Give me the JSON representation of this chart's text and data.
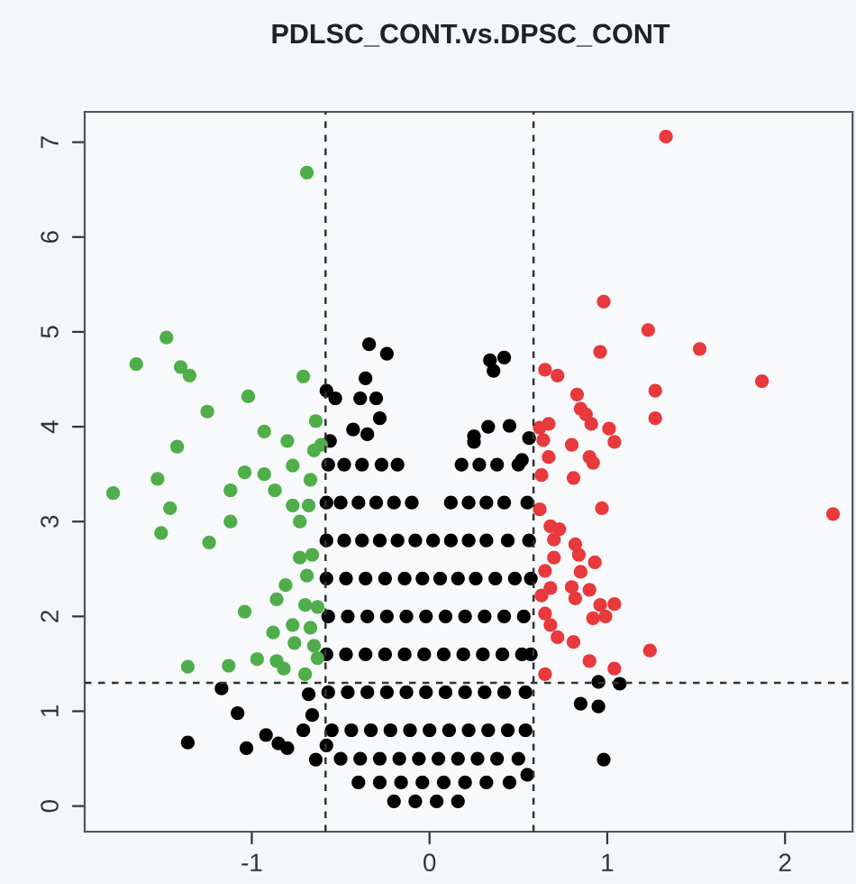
{
  "chart_data": {
    "type": "scatter",
    "title": "PDLSC_CONT.vs.DPSC_CONT",
    "xlim": [
      -1.94,
      2.38
    ],
    "ylim": [
      -0.27,
      7.32
    ],
    "xticks": [
      -1,
      0,
      1,
      2
    ],
    "yticks": [
      0,
      1,
      2,
      3,
      4,
      5,
      6,
      7
    ],
    "grid": false,
    "legend": false,
    "marker": "circle",
    "ref_lines": [
      {
        "axis": "x",
        "value": -0.585,
        "line_style": "dashed",
        "color": "#333333"
      },
      {
        "axis": "x",
        "value": 0.585,
        "line_style": "dashed",
        "color": "#333333"
      },
      {
        "axis": "y",
        "value": 1.3,
        "line_style": "dashed",
        "color": "#333333"
      }
    ],
    "series": [
      {
        "color": "#000000",
        "x": [
          -0.34,
          -0.24,
          0.34,
          0.42,
          -0.36,
          0.36,
          -0.58,
          -0.53,
          -0.39,
          -0.3,
          -0.56,
          -0.43,
          -0.35,
          -0.28,
          0.25,
          0.33,
          0.45,
          0.56,
          -0.57,
          -0.48,
          -0.38,
          -0.27,
          -0.18,
          0.18,
          0.28,
          0.38,
          0.5,
          0.25,
          0.52,
          -0.58,
          -0.5,
          -0.4,
          -0.3,
          -0.2,
          -0.1,
          0.12,
          0.22,
          0.32,
          0.42,
          0.55,
          -0.58,
          -0.48,
          -0.38,
          -0.28,
          -0.18,
          -0.08,
          0.02,
          0.12,
          0.22,
          0.32,
          0.44,
          0.56,
          -0.58,
          -0.47,
          -0.36,
          -0.25,
          -0.14,
          -0.04,
          0.06,
          0.16,
          0.26,
          0.37,
          0.48,
          0.57,
          -0.57,
          -0.46,
          -0.35,
          -0.24,
          -0.13,
          -0.02,
          0.09,
          0.2,
          0.31,
          0.42,
          0.53,
          -0.58,
          -0.47,
          -0.36,
          -0.25,
          -0.14,
          -0.03,
          0.08,
          0.19,
          0.3,
          0.41,
          0.52,
          0.57,
          -0.57,
          -0.46,
          -0.35,
          -0.24,
          -0.13,
          -0.02,
          0.09,
          0.2,
          0.31,
          0.42,
          0.54,
          -0.55,
          -0.44,
          -0.33,
          -0.22,
          -0.11,
          0.0,
          0.11,
          0.22,
          0.33,
          0.44,
          0.54,
          -0.5,
          -0.39,
          -0.28,
          -0.17,
          -0.06,
          0.05,
          0.16,
          0.27,
          0.38,
          0.5,
          -0.4,
          -0.28,
          -0.16,
          -0.04,
          0.08,
          0.2,
          0.32,
          0.45,
          0.55,
          -0.2,
          -0.08,
          0.04,
          0.16,
          -1.17,
          -1.08,
          -1.36,
          -1.03,
          -0.92,
          -0.85,
          -0.8,
          -0.71,
          -0.66,
          -0.68,
          -0.64,
          -0.58,
          0.95,
          1.07,
          0.85,
          0.95,
          0.98
        ],
        "values": [
          4.87,
          4.77,
          4.7,
          4.73,
          4.51,
          4.59,
          4.38,
          4.3,
          4.3,
          4.3,
          3.85,
          3.97,
          3.92,
          4.09,
          3.9,
          4.0,
          4.01,
          3.88,
          3.6,
          3.6,
          3.6,
          3.6,
          3.6,
          3.6,
          3.6,
          3.6,
          3.6,
          3.84,
          3.65,
          3.2,
          3.2,
          3.2,
          3.2,
          3.2,
          3.2,
          3.2,
          3.2,
          3.2,
          3.2,
          3.2,
          2.8,
          2.8,
          2.8,
          2.8,
          2.8,
          2.8,
          2.8,
          2.8,
          2.8,
          2.8,
          2.8,
          2.8,
          2.4,
          2.4,
          2.4,
          2.4,
          2.4,
          2.4,
          2.4,
          2.4,
          2.4,
          2.4,
          2.4,
          2.4,
          2.0,
          2.0,
          2.0,
          2.0,
          2.0,
          2.0,
          2.0,
          2.0,
          2.0,
          2.0,
          2.0,
          1.6,
          1.6,
          1.6,
          1.6,
          1.6,
          1.6,
          1.6,
          1.6,
          1.6,
          1.6,
          1.6,
          1.6,
          1.2,
          1.2,
          1.2,
          1.2,
          1.2,
          1.2,
          1.2,
          1.2,
          1.2,
          1.2,
          1.2,
          0.8,
          0.8,
          0.8,
          0.8,
          0.8,
          0.8,
          0.8,
          0.8,
          0.8,
          0.8,
          0.8,
          0.5,
          0.5,
          0.5,
          0.5,
          0.5,
          0.5,
          0.5,
          0.5,
          0.5,
          0.5,
          0.25,
          0.25,
          0.25,
          0.25,
          0.25,
          0.25,
          0.25,
          0.25,
          0.33,
          0.05,
          0.05,
          0.05,
          0.05,
          1.24,
          0.98,
          0.67,
          0.61,
          0.75,
          0.66,
          0.61,
          0.8,
          0.96,
          1.18,
          0.49,
          0.64,
          1.31,
          1.29,
          1.08,
          1.05,
          0.49
        ]
      },
      {
        "color": "#4fae4a",
        "x": [
          -0.69,
          -1.48,
          -1.65,
          -1.4,
          -1.35,
          -0.71,
          -1.02,
          -1.25,
          -0.64,
          -0.93,
          -0.8,
          -1.42,
          -1.78,
          -1.53,
          -1.46,
          -1.51,
          -1.12,
          -1.12,
          -1.24,
          -1.04,
          -0.93,
          -0.87,
          -0.77,
          -0.77,
          -0.68,
          -0.73,
          -0.67,
          -0.65,
          -0.73,
          -0.66,
          -0.81,
          -0.69,
          -0.86,
          -1.04,
          -0.7,
          -0.63,
          -0.77,
          -0.88,
          -0.67,
          -0.76,
          -0.65,
          -1.36,
          -1.13,
          -0.97,
          -0.86,
          -0.82,
          -0.7,
          -0.63,
          -0.61
        ],
        "values": [
          6.68,
          4.94,
          4.66,
          4.63,
          4.54,
          4.53,
          4.32,
          4.16,
          4.06,
          3.95,
          3.85,
          3.79,
          3.3,
          3.45,
          3.14,
          2.88,
          3.33,
          3.0,
          2.78,
          3.52,
          3.5,
          3.33,
          3.59,
          3.17,
          3.17,
          3.0,
          3.44,
          3.75,
          2.62,
          2.65,
          2.33,
          2.43,
          2.18,
          2.05,
          2.12,
          2.1,
          1.91,
          1.83,
          1.88,
          1.72,
          1.69,
          1.47,
          1.48,
          1.55,
          1.53,
          1.45,
          1.39,
          1.56,
          3.81
        ]
      },
      {
        "color": "#e8393d",
        "x": [
          1.33,
          0.98,
          1.23,
          1.52,
          0.96,
          1.87,
          0.65,
          0.72,
          1.27,
          0.83,
          0.85,
          0.88,
          0.91,
          1.27,
          0.67,
          0.62,
          1.01,
          1.04,
          0.8,
          0.64,
          2.27,
          0.67,
          0.9,
          0.92,
          0.63,
          0.81,
          0.97,
          0.62,
          0.68,
          0.73,
          0.7,
          0.82,
          0.84,
          0.7,
          0.93,
          0.65,
          0.85,
          0.68,
          0.8,
          0.9,
          0.82,
          0.63,
          0.96,
          1.04,
          0.92,
          0.99,
          0.65,
          0.68,
          0.72,
          0.81,
          1.24,
          0.9,
          1.04,
          0.65
        ],
        "values": [
          7.06,
          5.32,
          5.02,
          4.82,
          4.79,
          4.48,
          4.6,
          4.54,
          4.38,
          4.34,
          4.19,
          4.13,
          4.03,
          4.09,
          4.03,
          3.99,
          3.98,
          3.84,
          3.81,
          3.86,
          3.08,
          3.68,
          3.68,
          3.62,
          3.49,
          3.46,
          3.14,
          3.13,
          2.95,
          2.92,
          2.81,
          2.76,
          2.65,
          2.62,
          2.57,
          2.48,
          2.47,
          2.3,
          2.31,
          2.28,
          2.19,
          2.22,
          2.12,
          2.13,
          1.98,
          2.0,
          2.03,
          1.91,
          1.78,
          1.73,
          1.64,
          1.53,
          1.45,
          1.39
        ]
      }
    ]
  }
}
